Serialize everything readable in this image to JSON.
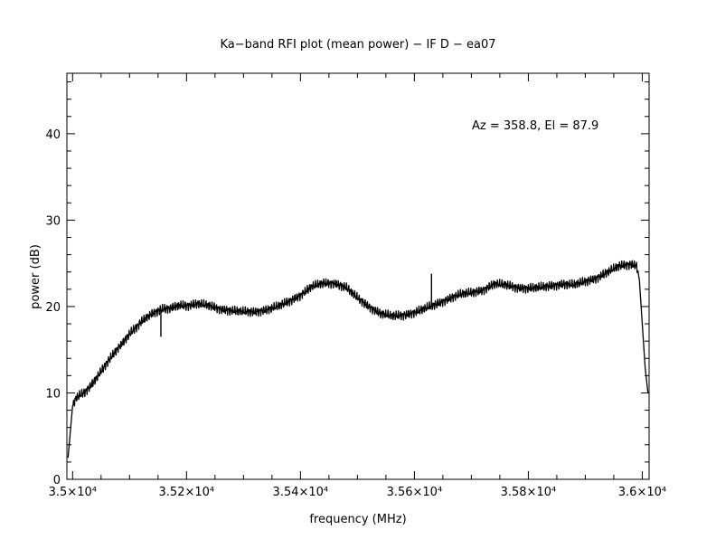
{
  "chart_data": {
    "type": "line",
    "title": "Ka−band RFI plot (mean power) − IF D − ea07",
    "xlabel": "frequency (MHz)",
    "ylabel": "power (dB)",
    "annotation": "Az = 358.8, El = 87.9",
    "xlim": [
      34990,
      36012
    ],
    "ylim": [
      0,
      47
    ],
    "x_ticks": [
      {
        "value": 35000,
        "label": "3.5×10⁴"
      },
      {
        "value": 35200,
        "label": "3.52×10⁴"
      },
      {
        "value": 35400,
        "label": "3.54×10⁴"
      },
      {
        "value": 35600,
        "label": "3.56×10⁴"
      },
      {
        "value": 35800,
        "label": "3.58×10⁴"
      },
      {
        "value": 36000,
        "label": "3.6×10⁴"
      }
    ],
    "y_ticks": [
      {
        "value": 0,
        "label": "0"
      },
      {
        "value": 10,
        "label": "10"
      },
      {
        "value": 20,
        "label": "20"
      },
      {
        "value": 30,
        "label": "30"
      },
      {
        "value": 40,
        "label": "40"
      }
    ],
    "grid": false,
    "line_color": "#000000",
    "series": [
      {
        "x": [
          34992,
          34996,
          35000,
          35005,
          35010,
          35020,
          35030,
          35040,
          35050,
          35060,
          35070,
          35080,
          35090,
          35100,
          35110,
          35120,
          35130,
          35140,
          35150,
          35160,
          35170,
          35180,
          35190,
          35200,
          35220,
          35240,
          35260,
          35280,
          35300,
          35320,
          35340,
          35360,
          35380,
          35400,
          35420,
          35440,
          35460,
          35480,
          35500,
          35520,
          35540,
          35560,
          35580,
          35600,
          35620,
          35640,
          35660,
          35680,
          35700,
          35720,
          35740,
          35760,
          35780,
          35800,
          35820,
          35840,
          35860,
          35880,
          35900,
          35920,
          35940,
          35960,
          35980,
          35990,
          35995,
          36000,
          36005,
          36010
        ],
        "y": [
          2.5,
          5.5,
          8.5,
          9.3,
          9.6,
          10.0,
          10.7,
          11.5,
          12.5,
          13.5,
          14.3,
          15.2,
          16.0,
          16.8,
          17.5,
          18.2,
          18.7,
          19.2,
          19.5,
          19.7,
          19.8,
          20.0,
          20.1,
          20.1,
          20.3,
          20.1,
          19.7,
          19.5,
          19.4,
          19.4,
          19.6,
          20.0,
          20.6,
          21.3,
          22.3,
          22.7,
          22.7,
          22.2,
          21.0,
          20.0,
          19.2,
          18.9,
          19.0,
          19.3,
          19.8,
          20.3,
          20.9,
          21.4,
          21.6,
          21.9,
          22.6,
          22.5,
          22.2,
          22.1,
          22.2,
          22.4,
          22.6,
          22.5,
          22.9,
          23.3,
          24.0,
          24.7,
          24.9,
          24.7,
          23.0,
          18.0,
          13.0,
          10.0
        ]
      }
    ],
    "spikes": [
      {
        "x": 35630,
        "y": 23.8
      },
      {
        "x": 35155,
        "y": 16.5
      }
    ]
  }
}
